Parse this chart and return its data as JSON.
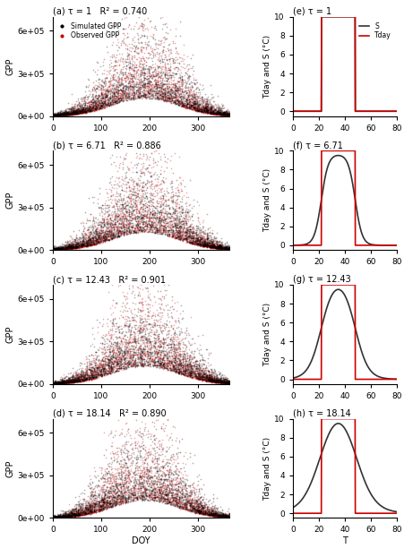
{
  "panels": [
    {
      "label": "(a)",
      "tau": 1,
      "r2": 0.74
    },
    {
      "label": "(b)",
      "tau": 6.71,
      "r2": 0.886
    },
    {
      "label": "(c)",
      "tau": 12.43,
      "r2": 0.901
    },
    {
      "label": "(d)",
      "tau": 18.14,
      "r2": 0.89
    }
  ],
  "right_panels": [
    {
      "label": "(e)",
      "tau": 1
    },
    {
      "label": "(f)",
      "tau": 6.71
    },
    {
      "label": "(g)",
      "tau": 12.43
    },
    {
      "label": "(h)",
      "tau": 18.14
    }
  ],
  "scatter_color_sim": "#000000",
  "scatter_color_obs": "#cc0000",
  "scatter_alpha": 0.3,
  "scatter_size": 1.5,
  "s_color": "#333333",
  "tday_color": "#cc0000",
  "ylabel_left": "GPP",
  "ylabel_right": "Tday and S (°C)",
  "xlabel_left": "DOY",
  "xlabel_right": "T",
  "xlim_left": [
    0,
    365
  ],
  "ylim_left": [
    0,
    700000
  ],
  "xlim_right": [
    0,
    80
  ],
  "ylim_right": [
    -0.5,
    10
  ],
  "yticks_left": [
    0,
    300000,
    600000
  ],
  "ytick_labels_left": [
    "0e+00",
    "3e+05",
    "6e+05"
  ],
  "xticks_left": [
    0,
    100,
    200,
    300
  ],
  "xticks_right": [
    0,
    20,
    40,
    60,
    80
  ],
  "yticks_right": [
    0,
    2,
    4,
    6,
    8,
    10
  ],
  "tday_rise": 22,
  "tday_fall": 48,
  "tday_max": 10,
  "background_color": "#ffffff"
}
